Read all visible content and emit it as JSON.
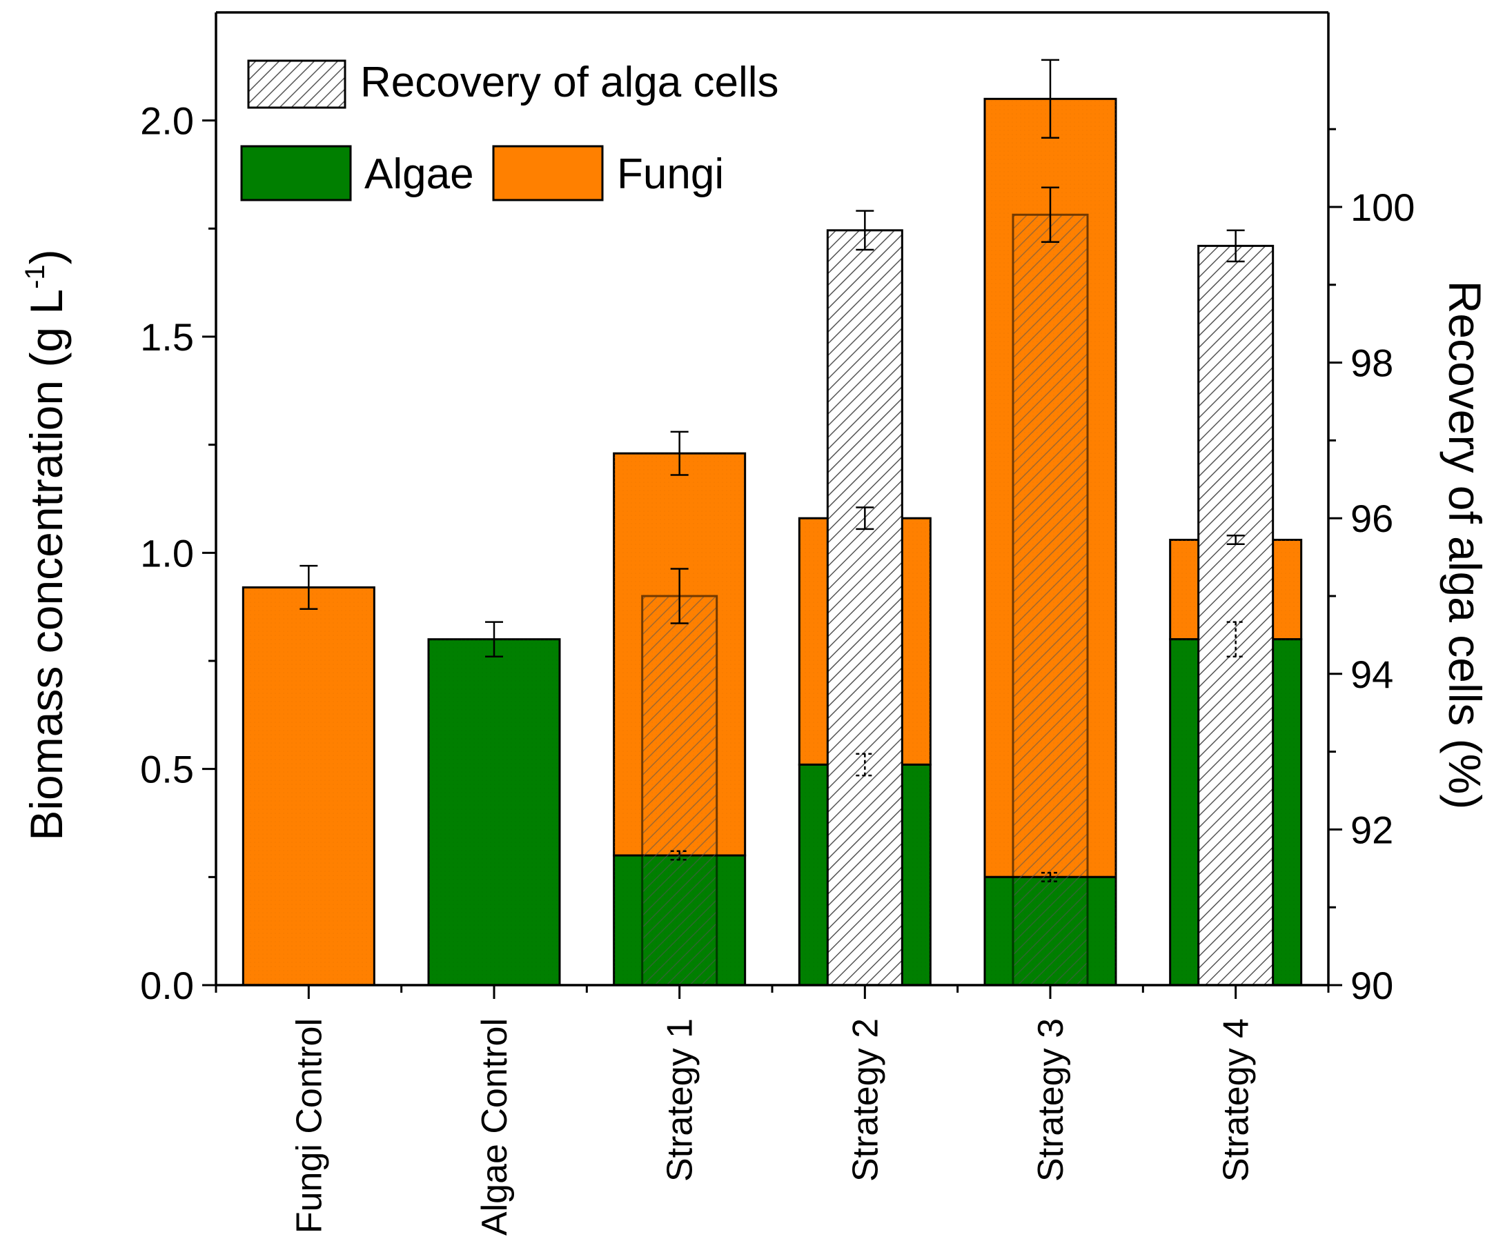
{
  "chart_data": {
    "type": "bar",
    "categories": [
      "Fungi Control",
      "Algae Control",
      "Strategy 1",
      "Strategy 2",
      "Strategy 3",
      "Strategy 4"
    ],
    "ylabel_left": "Biomass concentration (g L",
    "ylabel_left_sup": "-1",
    "ylabel_left_close": ")",
    "ylabel_right": "Recovery of alga cells (%)",
    "ylim_left": [
      0,
      2.25
    ],
    "ylim_right": [
      90,
      102.5
    ],
    "yticks_left": [
      "0.0",
      "0.5",
      "1.0",
      "1.5",
      "2.0"
    ],
    "yticks_right": [
      "90",
      "92",
      "94",
      "96",
      "98",
      "100"
    ],
    "legend": {
      "recovery": "Recovery of alga cells",
      "algae": "Algae",
      "fungi": "Fungi",
      "placement": "top-left"
    },
    "series": [
      {
        "name": "Algae",
        "color": "#007f00",
        "values": [
          0,
          0.8,
          0.3,
          0.51,
          0.25,
          0.8
        ],
        "errors": [
          null,
          0.04,
          0.01,
          0.025,
          0.01,
          0.04
        ]
      },
      {
        "name": "Fungi",
        "color": "#ff8000",
        "values": [
          0.92,
          0,
          0.93,
          0.57,
          1.8,
          0.23
        ],
        "totals": [
          0.92,
          0.8,
          1.23,
          1.08,
          2.05,
          1.03
        ],
        "errors": [
          0.05,
          null,
          0.05,
          0.025,
          0.09,
          0.01
        ]
      },
      {
        "name": "Recovery of alga cells",
        "axis": "right",
        "color": "#ffffff",
        "pattern": "diagonal-hatch",
        "values": [
          null,
          null,
          95.0,
          99.7,
          99.9,
          99.5
        ],
        "errors": [
          null,
          null,
          0.35,
          0.25,
          0.35,
          0.2
        ]
      }
    ]
  }
}
